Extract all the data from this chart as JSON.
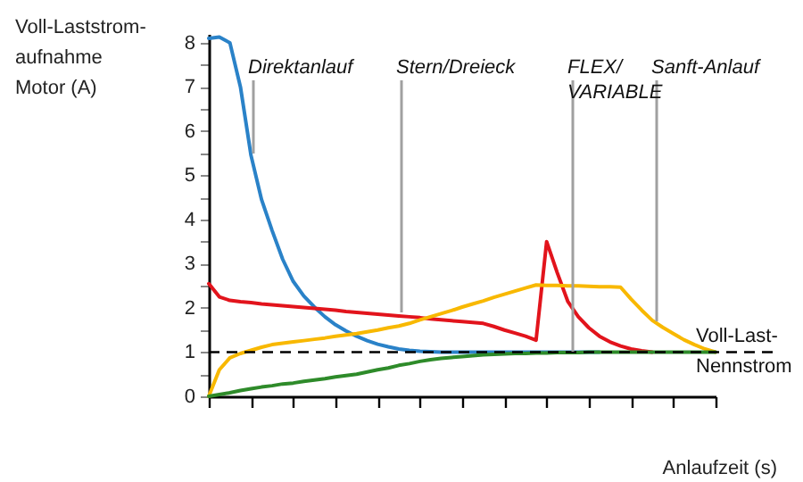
{
  "chart_data": {
    "type": "line",
    "xlabel": "Anlaufzeit (s)",
    "ylabel": "Voll-Laststrom-\naufnahme\nMotor (A)",
    "categories": [
      null,
      null,
      null,
      null,
      null,
      null,
      null,
      null,
      null,
      null,
      null,
      null,
      null,
      null,
      null,
      null,
      null,
      null,
      null,
      null,
      null,
      null,
      null,
      null,
      null,
      null,
      null,
      null,
      null,
      null,
      null,
      null,
      null,
      null,
      null,
      null,
      null,
      null,
      null,
      null,
      null,
      null,
      null,
      null,
      null,
      null,
      null,
      null,
      null
    ],
    "ylim": [
      0,
      8.2
    ],
    "yticks": [
      0,
      {
        "value": 0.5,
        "label": null
      },
      1,
      {
        "value": 1.5,
        "label": null
      },
      2,
      {
        "value": 2.5,
        "label": null
      },
      3,
      {
        "value": 3.5,
        "label": null
      },
      4,
      {
        "value": 4.5,
        "label": null
      },
      5,
      {
        "value": 5.5,
        "label": null
      },
      6,
      {
        "value": 6.5,
        "label": null
      },
      7,
      {
        "value": 7.5,
        "label": null
      },
      8
    ],
    "tick_labels": "y",
    "line_style": "solid",
    "series": [
      {
        "color": "#2a82c8",
        "values": [
          8.1,
          8.13,
          8.0,
          7.0,
          5.45,
          4.45,
          3.75,
          3.1,
          2.6,
          2.27,
          2.02,
          1.8,
          1.62,
          1.48,
          1.36,
          1.26,
          1.18,
          1.12,
          1.07,
          1.04,
          1.02,
          1.01,
          1.0,
          1.0,
          1.0,
          1.0,
          1.0,
          1.0,
          1.0,
          1.0,
          1.0,
          1.0,
          1.0,
          1.0,
          1.0,
          1.0,
          1.0,
          1.0,
          null,
          null,
          null,
          null,
          null,
          null,
          null,
          null,
          null,
          null,
          null
        ]
      },
      {
        "color": "#e2141c",
        "values": [
          2.55,
          2.25,
          2.17,
          2.14,
          2.12,
          2.09,
          2.07,
          2.05,
          2.03,
          2.01,
          1.99,
          1.97,
          1.95,
          1.92,
          1.9,
          1.88,
          1.86,
          1.84,
          1.82,
          1.8,
          1.78,
          1.75,
          1.73,
          1.71,
          1.69,
          1.67,
          1.65,
          1.58,
          1.5,
          1.43,
          1.36,
          1.27,
          3.5,
          2.8,
          2.15,
          1.8,
          1.55,
          1.36,
          1.23,
          1.14,
          1.07,
          1.03,
          1.0,
          null,
          null,
          null,
          null,
          null,
          null
        ]
      },
      {
        "color": "#f8b800",
        "values": [
          0,
          0.6,
          0.87,
          0.97,
          1.04,
          1.11,
          1.17,
          1.2,
          1.23,
          1.26,
          1.29,
          1.32,
          1.36,
          1.39,
          1.42,
          1.46,
          1.5,
          1.55,
          1.59,
          1.65,
          1.73,
          1.8,
          1.87,
          1.94,
          2.02,
          2.09,
          2.16,
          2.24,
          2.31,
          2.38,
          2.45,
          2.52,
          2.51,
          2.51,
          2.5,
          2.5,
          2.49,
          2.48,
          2.48,
          2.47,
          2.2,
          1.95,
          1.72,
          1.56,
          1.42,
          1.28,
          1.17,
          1.07,
          1.0
        ]
      },
      {
        "color": "#2e8b2a",
        "values": [
          0,
          0.04,
          0.08,
          0.13,
          0.17,
          0.21,
          0.24,
          0.28,
          0.3,
          0.34,
          0.37,
          0.4,
          0.44,
          0.47,
          0.5,
          0.55,
          0.6,
          0.64,
          0.7,
          0.74,
          0.79,
          0.83,
          0.86,
          0.88,
          0.9,
          0.92,
          0.94,
          0.95,
          0.96,
          0.97,
          0.97,
          0.98,
          0.98,
          0.99,
          0.99,
          0.99,
          1.0,
          1.0,
          1.0,
          1.0,
          1.0,
          1.0,
          1.0,
          1.0,
          1.0,
          1.0,
          1.0,
          1.0,
          1.0
        ]
      }
    ],
    "ref_lines": [
      {
        "axis": "y",
        "value": 1,
        "label": "Voll-Last-\nNennstrom",
        "color": "#000000",
        "line_style": "dashed"
      }
    ],
    "annotations": [
      "Direktanlauf",
      "Stern/Dreieck",
      "FLEX/\nVARIABLE",
      "Sanft-Anlauf"
    ]
  }
}
